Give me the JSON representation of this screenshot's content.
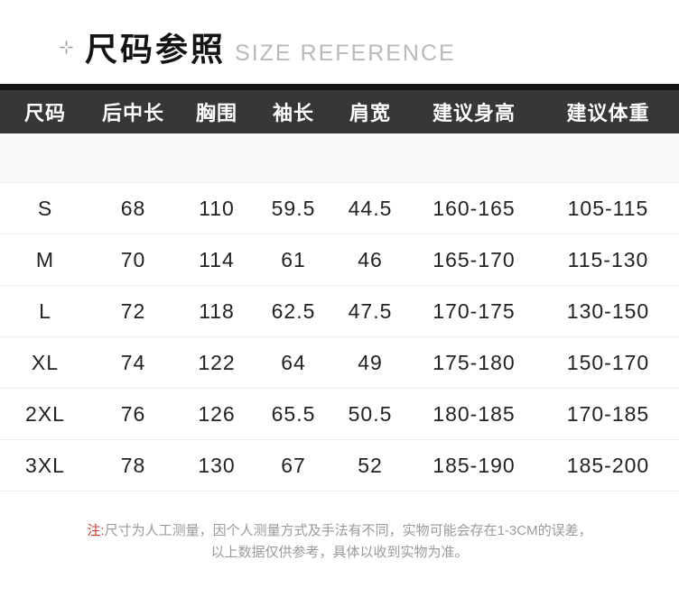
{
  "header": {
    "icon": "crosshair-icon",
    "title": "尺码参照",
    "subtitle": "SIZE REFERENCE"
  },
  "chart_data": {
    "type": "table",
    "title": "尺码参照 SIZE REFERENCE",
    "columns": [
      "尺码",
      "后中长",
      "胸围",
      "袖长",
      "肩宽",
      "建议身高",
      "建议体重"
    ],
    "rows": [
      [
        "S",
        "68",
        "110",
        "59.5",
        "44.5",
        "160-165",
        "105-115"
      ],
      [
        "M",
        "70",
        "114",
        "61",
        "46",
        "165-170",
        "115-130"
      ],
      [
        "L",
        "72",
        "118",
        "62.5",
        "47.5",
        "170-175",
        "130-150"
      ],
      [
        "XL",
        "74",
        "122",
        "64",
        "49",
        "175-180",
        "150-170"
      ],
      [
        "2XL",
        "76",
        "126",
        "65.5",
        "50.5",
        "180-185",
        "170-185"
      ],
      [
        "3XL",
        "78",
        "130",
        "67",
        "52",
        "185-190",
        "185-200"
      ]
    ]
  },
  "note": {
    "prefix": "注:",
    "line1": "尺寸为人工测量，因个人测量方式及手法有不同，实物可能会存在1-3CM的误差，",
    "line2": "以上数据仅供参考，具体以收到实物为准。"
  },
  "colors": {
    "header_bg": "#373737",
    "header_top_strip": "#141414",
    "title_text": "#141414",
    "subtitle_text": "#b9b9b9",
    "divider": "#ededed",
    "note_text": "#9a9a9a",
    "note_red": "#c4392e"
  }
}
